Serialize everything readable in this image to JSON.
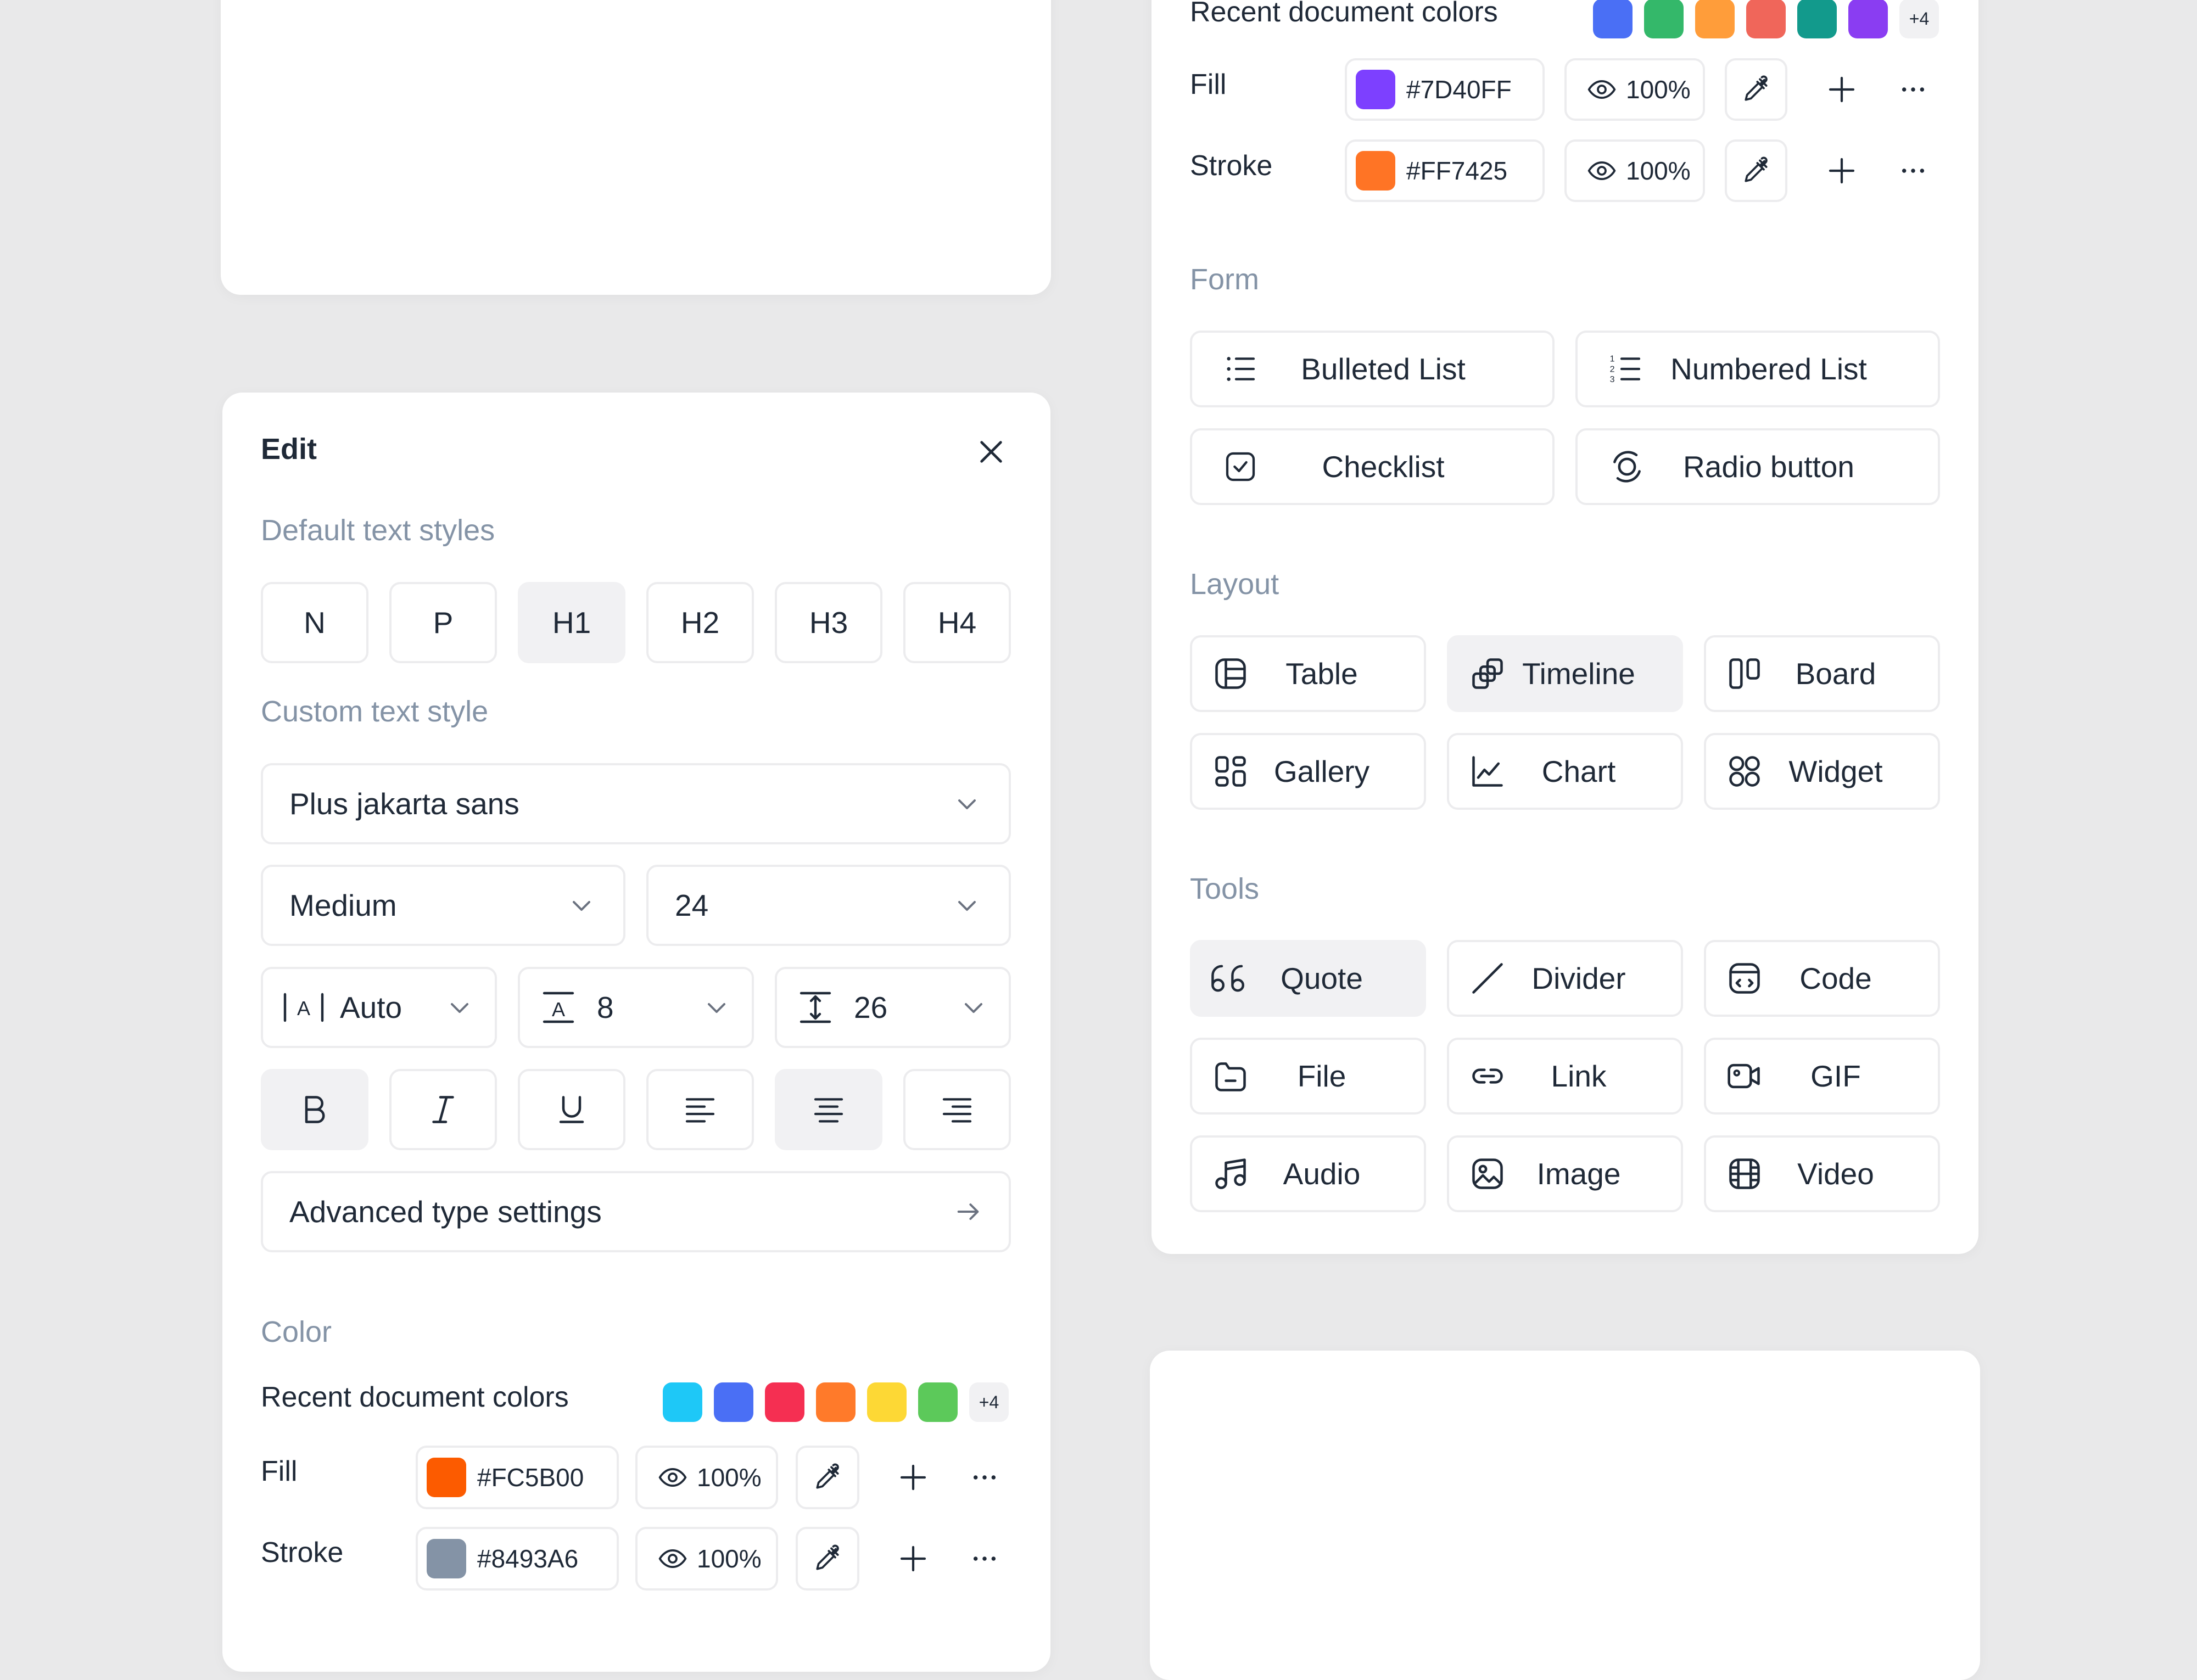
{
  "edit_panel": {
    "title": "Edit",
    "default_styles_heading": "Default text styles",
    "default_styles": [
      "N",
      "P",
      "H1",
      "H2",
      "H3",
      "H4"
    ],
    "custom_style_heading": "Custom text style",
    "font_family": "Plus jakarta sans",
    "font_weight": "Medium",
    "font_size": "24",
    "letter_spacing": "Auto",
    "paragraph_spacing": "8",
    "line_height": "26",
    "advanced_label": "Advanced type settings",
    "color_heading": "Color",
    "recent_colors_label": "Recent document colors",
    "recent_colors": [
      "#1ec8f7",
      "#4a6ff5",
      "#f52f52",
      "#ff7a2a",
      "#fdd835",
      "#5cc95a"
    ],
    "recent_more": "+4",
    "fill_label": "Fill",
    "fill_hex": "#FC5B00",
    "fill_color": "#FC5B00",
    "fill_opacity": "100%",
    "stroke_label": "Stroke",
    "stroke_hex": "#8493A6",
    "stroke_color": "#8493A6",
    "stroke_opacity": "100%"
  },
  "right_panel": {
    "recent_colors_label": "Recent document colors",
    "recent_colors": [
      "#4a6ff5",
      "#34b86a",
      "#ff9d3a",
      "#f0665a",
      "#129a8c",
      "#8a3df2"
    ],
    "recent_more": "+4",
    "fill_label": "Fill",
    "fill_hex": "#7D40FF",
    "fill_color": "#7D40FF",
    "fill_opacity": "100%",
    "stroke_label": "Stroke",
    "stroke_hex": "#FF7425",
    "stroke_color": "#FF7425",
    "stroke_opacity": "100%",
    "form_heading": "Form",
    "form_items": [
      "Bulleted List",
      "Numbered List",
      "Checklist",
      "Radio button"
    ],
    "layout_heading": "Layout",
    "layout_items": [
      "Table",
      "Timeline",
      "Board",
      "Gallery",
      "Chart",
      "Widget"
    ],
    "tools_heading": "Tools",
    "tools_items": [
      "Quote",
      "Divider",
      "Code",
      "File",
      "Link",
      "GIF",
      "Audio",
      "Image",
      "Video"
    ]
  }
}
